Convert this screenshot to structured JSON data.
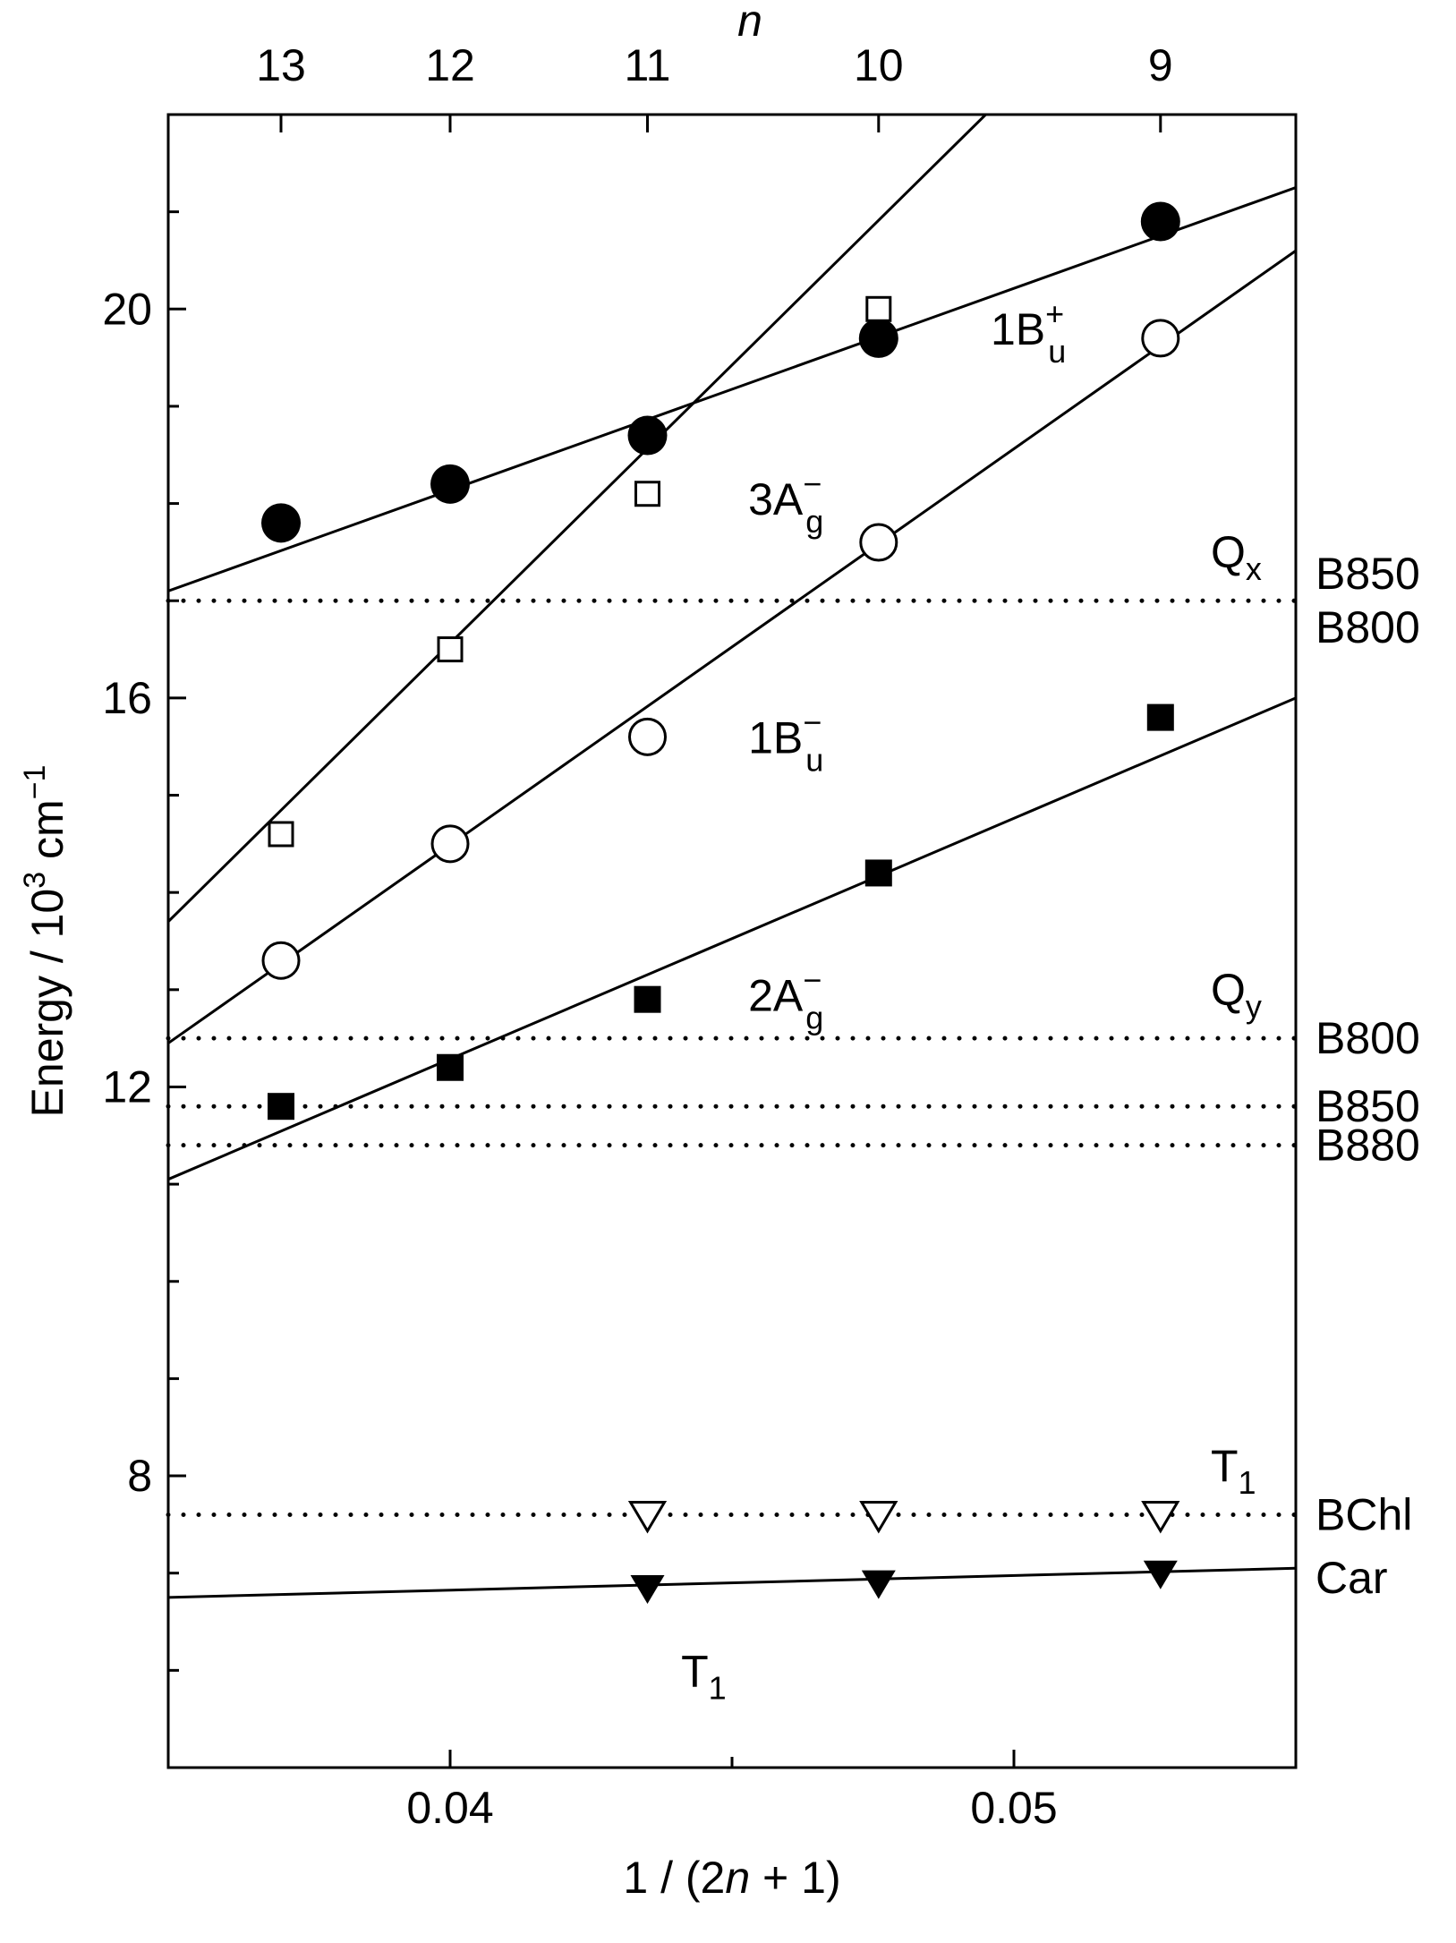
{
  "chart_data": {
    "type": "scatter",
    "xlabel": "1 / (2n + 1)",
    "xlabel_parts": [
      "1 / (2",
      "n",
      " + 1)"
    ],
    "ylabel": "Energy / 10³ cm⁻¹",
    "ylabel_parts": [
      "Energy / 10",
      "3",
      " cm",
      "−1"
    ],
    "top_axis_label": "n",
    "xlim": [
      0.035,
      0.055
    ],
    "ylim": [
      5,
      22
    ],
    "x_ticks": [
      0.04,
      0.05
    ],
    "x_tick_labels": [
      "0.04",
      "0.05"
    ],
    "x_minor_ticks": [
      0.035,
      0.045,
      0.055
    ],
    "y_ticks": [
      8,
      12,
      16,
      20
    ],
    "y_tick_labels": [
      "8",
      "12",
      "16",
      "20"
    ],
    "y_minor_ticks": [
      5,
      6,
      7,
      9,
      10,
      11,
      13,
      14,
      15,
      17,
      18,
      19,
      21,
      22
    ],
    "top_ticks": [
      {
        "label": "13",
        "x": 0.037
      },
      {
        "label": "12",
        "x": 0.04
      },
      {
        "label": "11",
        "x": 0.0435
      },
      {
        "label": "10",
        "x": 0.0476
      },
      {
        "label": "9",
        "x": 0.0526
      }
    ],
    "series": [
      {
        "name": "1B",
        "sub": "u",
        "sup": "+",
        "marker": "circle-filled",
        "points": [
          {
            "x": 0.037,
            "y": 17.8
          },
          {
            "x": 0.04,
            "y": 18.2
          },
          {
            "x": 0.0435,
            "y": 18.7
          },
          {
            "x": 0.0476,
            "y": 19.7
          },
          {
            "x": 0.0526,
            "y": 20.9
          }
        ],
        "fit": [
          [
            0.035,
            17.1
          ],
          [
            0.055,
            21.25
          ]
        ],
        "label_at": {
          "x": 0.048,
          "y": 19.8
        }
      },
      {
        "name": "3A",
        "sub": "g",
        "sup": "−",
        "marker": "square-open",
        "points": [
          {
            "x": 0.037,
            "y": 14.6
          },
          {
            "x": 0.04,
            "y": 16.5
          },
          {
            "x": 0.0435,
            "y": 18.1
          },
          {
            "x": 0.0476,
            "y": 20.0
          }
        ],
        "fit": [
          [
            0.035,
            13.7
          ],
          [
            0.0495,
            22.0
          ]
        ],
        "label_at": {
          "x": 0.0437,
          "y": 18.05
        }
      },
      {
        "name": "1B",
        "sub": "u",
        "sup": "−",
        "marker": "circle-open",
        "points": [
          {
            "x": 0.037,
            "y": 13.3
          },
          {
            "x": 0.04,
            "y": 14.5
          },
          {
            "x": 0.0435,
            "y": 15.6
          },
          {
            "x": 0.0476,
            "y": 17.6
          },
          {
            "x": 0.0526,
            "y": 19.7
          }
        ],
        "fit": [
          [
            0.035,
            12.45
          ],
          [
            0.055,
            20.6
          ]
        ],
        "label_at": {
          "x": 0.0437,
          "y": 15.6
        }
      },
      {
        "name": "2A",
        "sub": "g",
        "sup": "−",
        "marker": "square-filled",
        "points": [
          {
            "x": 0.037,
            "y": 11.8
          },
          {
            "x": 0.04,
            "y": 12.2
          },
          {
            "x": 0.0435,
            "y": 12.9
          },
          {
            "x": 0.0476,
            "y": 14.2
          },
          {
            "x": 0.0526,
            "y": 15.8
          }
        ],
        "fit": [
          [
            0.035,
            11.05
          ],
          [
            0.055,
            16.0
          ]
        ],
        "label_at": {
          "x": 0.0437,
          "y": 12.95
        }
      },
      {
        "name": "BChl T1",
        "marker": "triangle-down-open",
        "points": [
          {
            "x": 0.0435,
            "y": 7.6
          },
          {
            "x": 0.0476,
            "y": 7.6
          },
          {
            "x": 0.0526,
            "y": 7.6
          }
        ]
      },
      {
        "name": "Car T1",
        "marker": "triangle-down-filled",
        "points": [
          {
            "x": 0.0435,
            "y": 6.85
          },
          {
            "x": 0.0476,
            "y": 6.9
          },
          {
            "x": 0.0526,
            "y": 7.0
          }
        ],
        "fit": [
          [
            0.035,
            6.75
          ],
          [
            0.055,
            7.05
          ]
        ],
        "label": "T",
        "label_sub": "1",
        "label_at": {
          "x": 0.0437,
          "y": 6.0
        }
      }
    ],
    "reference_lines": [
      {
        "y": 17.0,
        "labels": [
          "B850",
          "B800"
        ]
      },
      {
        "y": 12.5,
        "labels": [
          "B800"
        ]
      },
      {
        "y": 11.8,
        "labels": [
          "B850"
        ]
      },
      {
        "y": 11.4,
        "labels": [
          "B880"
        ]
      },
      {
        "y": 7.6,
        "labels": [
          "BChl"
        ]
      }
    ],
    "text_labels": [
      {
        "text": "Q",
        "sub": "x",
        "y": 17.5
      },
      {
        "text": "Q",
        "sub": "y",
        "y": 13.0
      },
      {
        "text": "T",
        "sub": "1",
        "y": 8.1
      },
      {
        "text": "Car",
        "y": 6.95
      }
    ]
  }
}
